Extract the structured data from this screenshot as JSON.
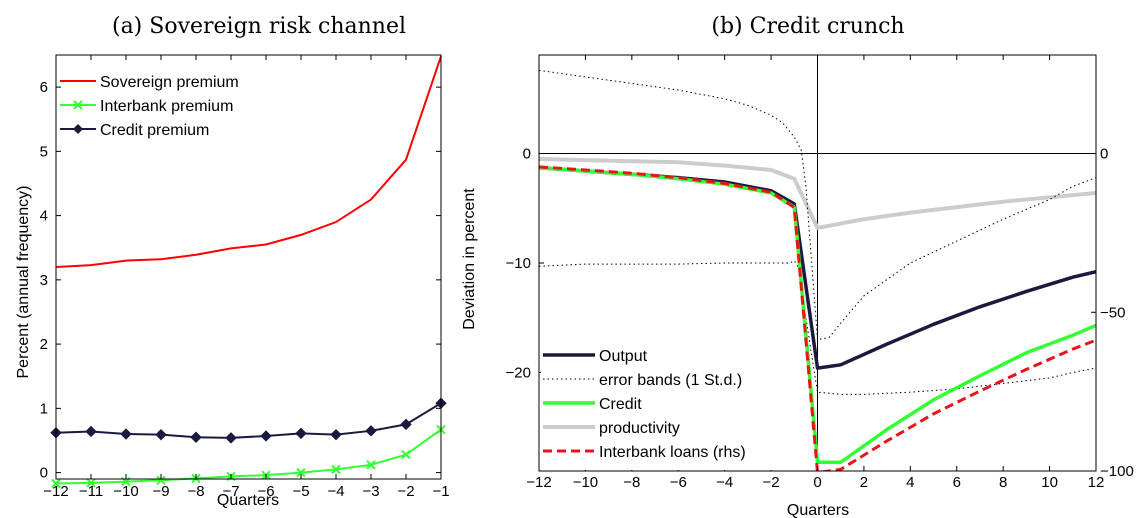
{
  "chart_data": [
    {
      "type": "line",
      "title": "(a) Sovereign risk channel",
      "xlabel": "Quarters",
      "ylabel": "Percent (annual frequency)",
      "xlim": [
        -12,
        -1
      ],
      "ylim": [
        -0.1,
        6.5
      ],
      "xticks": [
        "−12",
        "−11",
        "−10",
        "−9",
        "−8",
        "−7",
        "−6",
        "−5",
        "−4",
        "−3",
        "−2",
        "−1"
      ],
      "yticks": [
        "0",
        "1",
        "2",
        "3",
        "4",
        "5",
        "6"
      ],
      "legend_position": "top-left",
      "x": [
        -12,
        -11,
        -10,
        -9,
        -8,
        -7,
        -6,
        -5,
        -4,
        -3,
        -2,
        -1
      ],
      "series": [
        {
          "name": "Sovereign premium",
          "color": "#ff0000",
          "marker": "none",
          "values": [
            3.2,
            3.23,
            3.3,
            3.32,
            3.39,
            3.49,
            3.55,
            3.7,
            3.9,
            4.25,
            4.87,
            6.48
          ]
        },
        {
          "name": "Interbank premium",
          "color": "#33ff33",
          "marker": "x",
          "values": [
            -0.17,
            -0.16,
            -0.14,
            -0.12,
            -0.09,
            -0.06,
            -0.04,
            0.0,
            0.05,
            0.12,
            0.28,
            0.67
          ]
        },
        {
          "name": "Credit premium",
          "color": "#1a1a40",
          "marker": "diamond",
          "values": [
            0.62,
            0.64,
            0.6,
            0.59,
            0.55,
            0.54,
            0.57,
            0.61,
            0.59,
            0.65,
            0.75,
            1.08
          ]
        }
      ]
    },
    {
      "type": "line",
      "title": "(b) Credit crunch",
      "xlabel": "Quarters",
      "ylabel": "Deviation in percent",
      "xlim": [
        -12,
        12
      ],
      "ylim": [
        -29,
        9
      ],
      "y2lim": [
        -100,
        0
      ],
      "xticks": [
        "−12",
        "−10",
        "−8",
        "−6",
        "−4",
        "−2",
        "0",
        "2",
        "4",
        "6",
        "8",
        "10",
        "12"
      ],
      "yticks": [
        "−20",
        "−10",
        "0"
      ],
      "y2ticks": [
        "−100",
        "−50",
        "0"
      ],
      "legend_position": "bottom-left",
      "series": [
        {
          "name": "Output",
          "color": "#1a1a40",
          "style": "solid-thick",
          "axis": "left",
          "x": [
            -12,
            -10,
            -8,
            -6,
            -4,
            -2,
            -1,
            0,
            1,
            3,
            5,
            7,
            9,
            11,
            12
          ],
          "values": [
            -1.3,
            -1.6,
            -1.9,
            -2.2,
            -2.6,
            -3.4,
            -4.6,
            -19.6,
            -19.3,
            -17.4,
            -15.6,
            -14.0,
            -12.6,
            -11.3,
            -10.8
          ]
        },
        {
          "name": "error bands (1 St.d.)",
          "color": "#000000",
          "style": "dotted",
          "axis": "left",
          "x": [
            -12,
            -10,
            -8,
            -6,
            -4,
            -3,
            -2,
            -1.5,
            -1,
            -0.7,
            -0.5,
            0,
            0.5,
            1,
            2,
            4,
            6,
            8,
            10,
            11,
            12
          ],
          "values": [
            7.6,
            7.0,
            6.4,
            5.8,
            5.0,
            4.4,
            3.5,
            2.8,
            1.5,
            0.3,
            -3.0,
            -17.0,
            -16.8,
            -15.5,
            -13.0,
            -10.0,
            -8.0,
            -6.0,
            -4.2,
            -3.0,
            -2.2
          ]
        },
        {
          "name": "",
          "color": "#000000",
          "style": "dotted",
          "axis": "left",
          "x": [
            -12,
            -10,
            -8,
            -6,
            -4,
            -2,
            -1.2,
            -1,
            -0.8,
            -0.5,
            0,
            0.5,
            1,
            2,
            4,
            6,
            8,
            10,
            11,
            12
          ],
          "values": [
            -10.3,
            -10.1,
            -10.1,
            -10.1,
            -10.0,
            -10.0,
            -10.0,
            -9.8,
            -10.5,
            -15.0,
            -21.8,
            -21.9,
            -22.0,
            -22.0,
            -21.8,
            -21.5,
            -21.0,
            -20.5,
            -20.0,
            -19.6
          ]
        },
        {
          "name": "Credit",
          "color": "#33ff33",
          "style": "solid-thick",
          "axis": "left",
          "x": [
            -12,
            -10,
            -8,
            -6,
            -4,
            -2,
            -1,
            0,
            1,
            3,
            5,
            7,
            9,
            11,
            12
          ],
          "values": [
            -1.3,
            -1.6,
            -1.9,
            -2.3,
            -2.8,
            -3.6,
            -4.9,
            -28.2,
            -28.2,
            -25.2,
            -22.5,
            -20.3,
            -18.2,
            -16.6,
            -15.7
          ]
        },
        {
          "name": "productivity",
          "color": "#cccccc",
          "style": "solid-thick",
          "axis": "left",
          "x": [
            -12,
            -10,
            -8,
            -6,
            -4,
            -2,
            -1,
            0,
            2,
            4,
            6,
            8,
            10,
            12
          ],
          "values": [
            -0.5,
            -0.6,
            -0.7,
            -0.8,
            -1.1,
            -1.5,
            -2.3,
            -6.8,
            -6.0,
            -5.4,
            -4.9,
            -4.4,
            -4.0,
            -3.6
          ]
        },
        {
          "name": "Interbank loans (rhs)",
          "color": "#e8141b",
          "style": "dashed",
          "axis": "right",
          "x": [
            -12,
            -10,
            -8,
            -6,
            -4,
            -2,
            -1,
            0,
            1,
            3,
            5,
            7,
            9,
            11,
            12
          ],
          "values": [
            -4.2,
            -5.2,
            -6.2,
            -7.6,
            -9.4,
            -12.2,
            -17.0,
            -100.5,
            -99.5,
            -90.5,
            -82.0,
            -74.8,
            -68.0,
            -61.6,
            -58.8
          ]
        }
      ]
    }
  ]
}
